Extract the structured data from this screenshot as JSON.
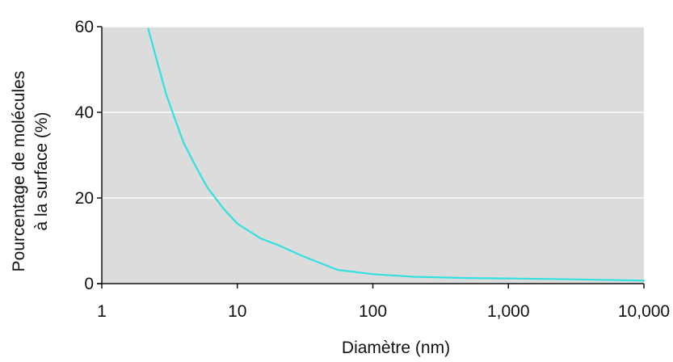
{
  "chart_data": {
    "type": "line",
    "title": "",
    "xlabel": "Diamètre (nm)",
    "ylabel_lines": [
      "Pourcentage de molécules",
      "à la surface (%)"
    ],
    "x_scale": "log",
    "xlim": [
      1,
      10000
    ],
    "ylim": [
      0,
      60
    ],
    "x_ticks": [
      {
        "value": 1,
        "label": "1"
      },
      {
        "value": 10,
        "label": "10"
      },
      {
        "value": 100,
        "label": "100"
      },
      {
        "value": 1000,
        "label": "1,000"
      },
      {
        "value": 10000,
        "label": "10,000"
      }
    ],
    "y_ticks": [
      {
        "value": 0,
        "label": "0"
      },
      {
        "value": 20,
        "label": "20"
      },
      {
        "value": 40,
        "label": "40"
      },
      {
        "value": 60,
        "label": "60"
      }
    ],
    "grid": "horizontal",
    "colors": {
      "plot_background": "#dcdcdc",
      "line": "#33e0e0",
      "grid": "#ffffff",
      "axis": "#111111"
    },
    "series": [
      {
        "values": [
          {
            "x": 2.2,
            "y": 59.5
          },
          {
            "x": 3,
            "y": 44
          },
          {
            "x": 4,
            "y": 33
          },
          {
            "x": 5,
            "y": 27
          },
          {
            "x": 6,
            "y": 22.5
          },
          {
            "x": 8,
            "y": 17.3
          },
          {
            "x": 10,
            "y": 14
          },
          {
            "x": 15,
            "y": 10.5
          },
          {
            "x": 20,
            "y": 9
          },
          {
            "x": 30,
            "y": 6.5
          },
          {
            "x": 55,
            "y": 3.2
          },
          {
            "x": 100,
            "y": 2.2
          },
          {
            "x": 200,
            "y": 1.6
          },
          {
            "x": 500,
            "y": 1.3
          },
          {
            "x": 1000,
            "y": 1.2
          },
          {
            "x": 3000,
            "y": 1.0
          },
          {
            "x": 10000,
            "y": 0.7
          }
        ]
      }
    ]
  }
}
